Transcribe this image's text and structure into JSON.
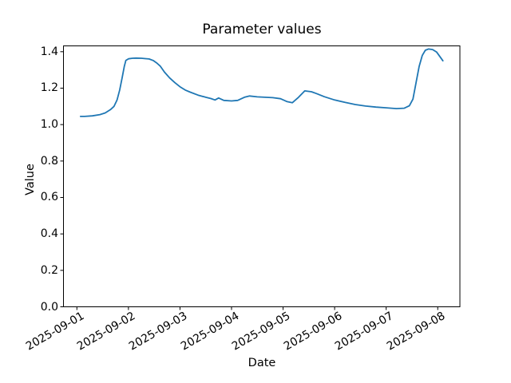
{
  "chart_data": {
    "type": "line",
    "title": "Parameter values",
    "xlabel": "Date",
    "ylabel": "Value",
    "x_tick_labels": [
      "2025-09-01",
      "2025-09-02",
      "2025-09-03",
      "2025-09-04",
      "2025-09-05",
      "2025-09-06",
      "2025-09-07",
      "2025-09-08"
    ],
    "y_tick_labels": [
      "0.0",
      "0.2",
      "0.4",
      "0.6",
      "0.8",
      "1.0",
      "1.2",
      "1.4"
    ],
    "y_tick_values": [
      0.0,
      0.2,
      0.4,
      0.6,
      0.8,
      1.0,
      1.2,
      1.4
    ],
    "xlim_days": [
      -0.26,
      7.43
    ],
    "ylim": [
      0,
      1.432
    ],
    "grid": false,
    "legend": "none",
    "line_color": "#1f77b4",
    "axis_color": "#000000",
    "background_color": "#ffffff",
    "series": [
      {
        "name": "parameter-values",
        "x_days": [
          0.07,
          0.15,
          0.3,
          0.45,
          0.55,
          0.65,
          0.72,
          0.78,
          0.83,
          0.88,
          0.92,
          0.95,
          1.0,
          1.08,
          1.15,
          1.25,
          1.33,
          1.4,
          1.48,
          1.55,
          1.62,
          1.7,
          1.8,
          1.9,
          2.0,
          2.1,
          2.2,
          2.35,
          2.5,
          2.6,
          2.68,
          2.75,
          2.85,
          3.0,
          3.12,
          3.25,
          3.35,
          3.5,
          3.65,
          3.8,
          3.95,
          4.08,
          4.18,
          4.3,
          4.42,
          4.55,
          4.65,
          4.8,
          5.0,
          5.2,
          5.4,
          5.6,
          5.8,
          6.0,
          6.2,
          6.35,
          6.45,
          6.52,
          6.58,
          6.64,
          6.7,
          6.76,
          6.82,
          6.9,
          6.98,
          7.05,
          7.1
        ],
        "values": [
          1.045,
          1.045,
          1.048,
          1.055,
          1.064,
          1.082,
          1.1,
          1.135,
          1.19,
          1.26,
          1.32,
          1.352,
          1.361,
          1.364,
          1.365,
          1.364,
          1.362,
          1.36,
          1.352,
          1.338,
          1.32,
          1.288,
          1.256,
          1.23,
          1.208,
          1.19,
          1.178,
          1.162,
          1.15,
          1.143,
          1.135,
          1.146,
          1.133,
          1.13,
          1.133,
          1.15,
          1.157,
          1.152,
          1.15,
          1.148,
          1.142,
          1.126,
          1.12,
          1.15,
          1.185,
          1.18,
          1.17,
          1.153,
          1.135,
          1.122,
          1.11,
          1.102,
          1.096,
          1.092,
          1.088,
          1.09,
          1.103,
          1.14,
          1.23,
          1.32,
          1.38,
          1.408,
          1.415,
          1.412,
          1.398,
          1.37,
          1.35
        ]
      }
    ]
  }
}
